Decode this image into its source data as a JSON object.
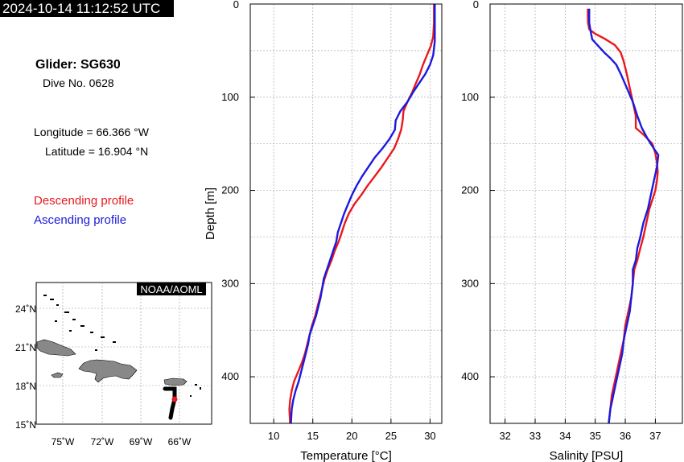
{
  "timestamp": "2024-10-14 11:12:52 UTC",
  "info": {
    "glider": "Glider: SG630",
    "dive": "Dive No. 0628",
    "longitude": "Longitude = 66.366 °W",
    "latitude": "Latitude = 16.904 °N"
  },
  "legend": {
    "descending": "Descending profile",
    "ascending": "Ascending profile",
    "descending_color": "#e8191d",
    "ascending_color": "#1a1adf"
  },
  "map": {
    "credit": "NOAA/AOML",
    "lat_ticks": [
      "24˚N",
      "21˚N",
      "18˚N",
      "15˚N"
    ],
    "lon_ticks": [
      "75˚W",
      "72˚W",
      "69˚W",
      "66˚W"
    ],
    "land_color": "#888888",
    "track_color": "#000000",
    "position_color": "#e8191d"
  },
  "chart_data": [
    {
      "type": "line",
      "xlabel": "Temperature [°C]",
      "ylabel": "Depth [m]",
      "xlim": [
        7,
        31.5
      ],
      "ylim": [
        450,
        0
      ],
      "xticks": [
        10,
        15,
        20,
        25,
        30
      ],
      "yticks": [
        0,
        100,
        200,
        300,
        400
      ],
      "grid": true,
      "series": [
        {
          "name": "Descending profile",
          "color": "#e8191d",
          "points": [
            [
              30.5,
              0
            ],
            [
              30.5,
              20
            ],
            [
              30.4,
              35
            ],
            [
              30.1,
              45
            ],
            [
              29.6,
              55
            ],
            [
              29.1,
              65
            ],
            [
              28.7,
              75
            ],
            [
              28.2,
              85
            ],
            [
              27.7,
              95
            ],
            [
              27.1,
              105
            ],
            [
              26.6,
              115
            ],
            [
              26.5,
              125
            ],
            [
              26.3,
              135
            ],
            [
              25.9,
              145
            ],
            [
              25.4,
              155
            ],
            [
              24.6,
              165
            ],
            [
              23.8,
              175
            ],
            [
              22.9,
              185
            ],
            [
              22.0,
              195
            ],
            [
              21.2,
              205
            ],
            [
              20.3,
              215
            ],
            [
              19.6,
              225
            ],
            [
              19.1,
              235
            ],
            [
              18.7,
              245
            ],
            [
              18.3,
              255
            ],
            [
              17.8,
              265
            ],
            [
              17.4,
              275
            ],
            [
              16.9,
              285
            ],
            [
              16.5,
              295
            ],
            [
              16.2,
              305
            ],
            [
              15.9,
              315
            ],
            [
              15.6,
              325
            ],
            [
              15.3,
              335
            ],
            [
              14.9,
              345
            ],
            [
              14.6,
              355
            ],
            [
              14.3,
              365
            ],
            [
              14.0,
              375
            ],
            [
              13.6,
              385
            ],
            [
              13.1,
              395
            ],
            [
              12.6,
              405
            ],
            [
              12.3,
              415
            ],
            [
              12.1,
              425
            ],
            [
              12.0,
              435
            ],
            [
              12.1,
              450
            ]
          ]
        },
        {
          "name": "Ascending profile",
          "color": "#1a1adf",
          "points": [
            [
              30.6,
              0
            ],
            [
              30.6,
              20
            ],
            [
              30.6,
              40
            ],
            [
              30.4,
              55
            ],
            [
              30.0,
              65
            ],
            [
              29.4,
              75
            ],
            [
              28.6,
              85
            ],
            [
              27.8,
              95
            ],
            [
              27.1,
              105
            ],
            [
              26.2,
              115
            ],
            [
              25.6,
              125
            ],
            [
              25.5,
              135
            ],
            [
              24.8,
              145
            ],
            [
              23.9,
              155
            ],
            [
              22.9,
              165
            ],
            [
              22.1,
              175
            ],
            [
              21.3,
              185
            ],
            [
              20.6,
              195
            ],
            [
              20.0,
              205
            ],
            [
              19.5,
              215
            ],
            [
              19.0,
              225
            ],
            [
              18.6,
              235
            ],
            [
              18.2,
              245
            ],
            [
              18.0,
              255
            ],
            [
              17.6,
              265
            ],
            [
              17.2,
              275
            ],
            [
              16.8,
              285
            ],
            [
              16.4,
              295
            ],
            [
              16.2,
              305
            ],
            [
              16.0,
              315
            ],
            [
              15.7,
              325
            ],
            [
              15.4,
              335
            ],
            [
              15.0,
              345
            ],
            [
              14.6,
              355
            ],
            [
              14.4,
              365
            ],
            [
              14.1,
              375
            ],
            [
              13.8,
              385
            ],
            [
              13.5,
              395
            ],
            [
              13.2,
              405
            ],
            [
              12.8,
              415
            ],
            [
              12.5,
              425
            ],
            [
              12.3,
              435
            ],
            [
              12.2,
              450
            ]
          ]
        }
      ]
    },
    {
      "type": "line",
      "xlabel": "Salinity [PSU]",
      "ylabel": "",
      "xlim": [
        31.5,
        37.9
      ],
      "ylim": [
        450,
        0
      ],
      "xticks": [
        32,
        33,
        34,
        35,
        36,
        37
      ],
      "yticks": [
        0,
        100,
        200,
        300,
        400
      ],
      "grid": true,
      "series": [
        {
          "name": "Descending profile",
          "color": "#e8191d",
          "points": [
            [
              34.75,
              5
            ],
            [
              34.76,
              20
            ],
            [
              34.8,
              27
            ],
            [
              35.0,
              32
            ],
            [
              35.3,
              37
            ],
            [
              35.65,
              44
            ],
            [
              35.85,
              52
            ],
            [
              35.95,
              62
            ],
            [
              36.05,
              75
            ],
            [
              36.15,
              90
            ],
            [
              36.25,
              105
            ],
            [
              36.35,
              120
            ],
            [
              36.35,
              133
            ],
            [
              36.6,
              140
            ],
            [
              36.9,
              150
            ],
            [
              37.0,
              160
            ],
            [
              37.05,
              170
            ],
            [
              37.08,
              180
            ],
            [
              37.05,
              190
            ],
            [
              37.0,
              200
            ],
            [
              36.9,
              210
            ],
            [
              36.8,
              220
            ],
            [
              36.7,
              235
            ],
            [
              36.6,
              250
            ],
            [
              36.5,
              262
            ],
            [
              36.4,
              275
            ],
            [
              36.3,
              285
            ],
            [
              36.25,
              300
            ],
            [
              36.2,
              315
            ],
            [
              36.1,
              330
            ],
            [
              36.0,
              345
            ],
            [
              35.95,
              360
            ],
            [
              35.85,
              375
            ],
            [
              35.75,
              390
            ],
            [
              35.65,
              405
            ],
            [
              35.55,
              420
            ],
            [
              35.5,
              435
            ],
            [
              35.45,
              450
            ]
          ]
        },
        {
          "name": "Ascending profile",
          "color": "#1a1adf",
          "points": [
            [
              34.8,
              5
            ],
            [
              34.8,
              20
            ],
            [
              34.85,
              30
            ],
            [
              34.9,
              38
            ],
            [
              35.1,
              45
            ],
            [
              35.3,
              52
            ],
            [
              35.5,
              58
            ],
            [
              35.7,
              65
            ],
            [
              35.85,
              75
            ],
            [
              36.05,
              90
            ],
            [
              36.25,
              105
            ],
            [
              36.4,
              120
            ],
            [
              36.55,
              133
            ],
            [
              36.75,
              145
            ],
            [
              36.95,
              155
            ],
            [
              37.1,
              162
            ],
            [
              37.05,
              175
            ],
            [
              36.95,
              190
            ],
            [
              36.85,
              205
            ],
            [
              36.75,
              220
            ],
            [
              36.6,
              235
            ],
            [
              36.5,
              250
            ],
            [
              36.4,
              262
            ],
            [
              36.35,
              275
            ],
            [
              36.25,
              285
            ],
            [
              36.25,
              300
            ],
            [
              36.2,
              315
            ],
            [
              36.15,
              330
            ],
            [
              36.05,
              345
            ],
            [
              35.95,
              360
            ],
            [
              35.9,
              375
            ],
            [
              35.8,
              390
            ],
            [
              35.7,
              405
            ],
            [
              35.6,
              420
            ],
            [
              35.5,
              435
            ],
            [
              35.45,
              450
            ]
          ]
        }
      ]
    }
  ]
}
